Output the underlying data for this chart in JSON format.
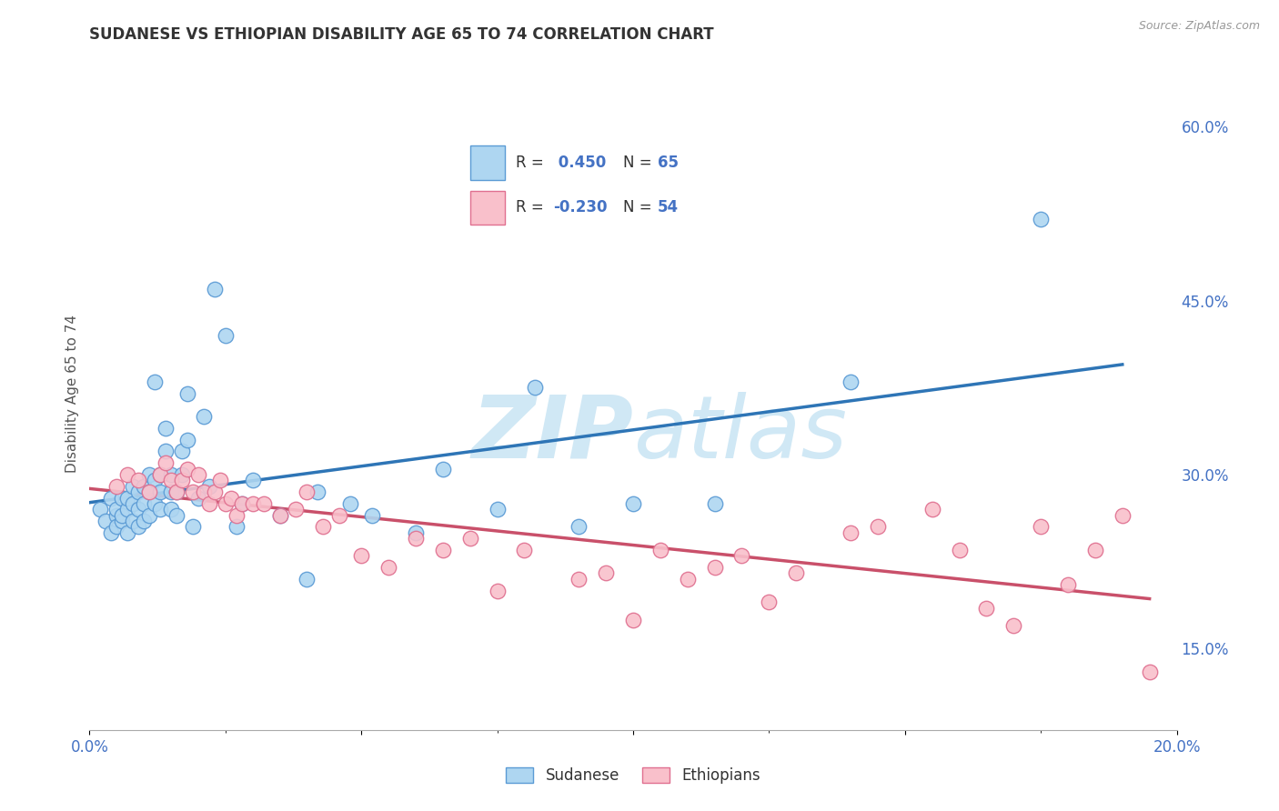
{
  "title": "SUDANESE VS ETHIOPIAN DISABILITY AGE 65 TO 74 CORRELATION CHART",
  "source": "Source: ZipAtlas.com",
  "ylabel": "Disability Age 65 to 74",
  "xlim": [
    0.0,
    0.2
  ],
  "ylim": [
    0.08,
    0.66
  ],
  "xticks": [
    0.0,
    0.05,
    0.1,
    0.15,
    0.2
  ],
  "xtick_labels": [
    "0.0%",
    "",
    "",
    "",
    "20.0%"
  ],
  "yticks_right": [
    0.15,
    0.3,
    0.45,
    0.6
  ],
  "ytick_labels_right": [
    "15.0%",
    "30.0%",
    "45.0%",
    "60.0%"
  ],
  "blue_fill_color": "#AED6F1",
  "blue_edge_color": "#5B9BD5",
  "pink_fill_color": "#F9C0CB",
  "pink_edge_color": "#E07090",
  "blue_line_color": "#2E75B6",
  "pink_line_color": "#C9506A",
  "r_blue": 0.45,
  "n_blue": 65,
  "r_pink": -0.23,
  "n_pink": 54,
  "legend_label_blue": "Sudanese",
  "legend_label_pink": "Ethiopians",
  "background_color": "#FFFFFF",
  "grid_color": "#CCCCCC",
  "watermark_color": "#D0E8F5",
  "blue_scatter_x": [
    0.002,
    0.003,
    0.004,
    0.004,
    0.005,
    0.005,
    0.005,
    0.006,
    0.006,
    0.006,
    0.007,
    0.007,
    0.007,
    0.008,
    0.008,
    0.008,
    0.009,
    0.009,
    0.009,
    0.01,
    0.01,
    0.01,
    0.011,
    0.011,
    0.011,
    0.012,
    0.012,
    0.012,
    0.013,
    0.013,
    0.013,
    0.014,
    0.014,
    0.015,
    0.015,
    0.015,
    0.016,
    0.016,
    0.017,
    0.017,
    0.018,
    0.018,
    0.019,
    0.02,
    0.021,
    0.022,
    0.023,
    0.025,
    0.027,
    0.028,
    0.03,
    0.035,
    0.04,
    0.042,
    0.048,
    0.052,
    0.06,
    0.065,
    0.075,
    0.082,
    0.09,
    0.1,
    0.115,
    0.14,
    0.175
  ],
  "blue_scatter_y": [
    0.27,
    0.26,
    0.28,
    0.25,
    0.265,
    0.27,
    0.255,
    0.26,
    0.28,
    0.265,
    0.25,
    0.27,
    0.28,
    0.26,
    0.275,
    0.29,
    0.255,
    0.27,
    0.285,
    0.26,
    0.275,
    0.29,
    0.265,
    0.285,
    0.3,
    0.38,
    0.275,
    0.295,
    0.27,
    0.285,
    0.3,
    0.32,
    0.34,
    0.27,
    0.285,
    0.3,
    0.265,
    0.285,
    0.3,
    0.32,
    0.33,
    0.37,
    0.255,
    0.28,
    0.35,
    0.29,
    0.46,
    0.42,
    0.255,
    0.275,
    0.295,
    0.265,
    0.21,
    0.285,
    0.275,
    0.265,
    0.25,
    0.305,
    0.27,
    0.375,
    0.255,
    0.275,
    0.275,
    0.38,
    0.52
  ],
  "pink_scatter_x": [
    0.005,
    0.007,
    0.009,
    0.011,
    0.013,
    0.014,
    0.015,
    0.016,
    0.017,
    0.018,
    0.019,
    0.02,
    0.021,
    0.022,
    0.023,
    0.024,
    0.025,
    0.026,
    0.027,
    0.028,
    0.03,
    0.032,
    0.035,
    0.038,
    0.04,
    0.043,
    0.046,
    0.05,
    0.055,
    0.06,
    0.065,
    0.07,
    0.075,
    0.08,
    0.09,
    0.095,
    0.1,
    0.105,
    0.11,
    0.115,
    0.12,
    0.125,
    0.13,
    0.14,
    0.145,
    0.155,
    0.16,
    0.165,
    0.17,
    0.175,
    0.18,
    0.185,
    0.19,
    0.195
  ],
  "pink_scatter_y": [
    0.29,
    0.3,
    0.295,
    0.285,
    0.3,
    0.31,
    0.295,
    0.285,
    0.295,
    0.305,
    0.285,
    0.3,
    0.285,
    0.275,
    0.285,
    0.295,
    0.275,
    0.28,
    0.265,
    0.275,
    0.275,
    0.275,
    0.265,
    0.27,
    0.285,
    0.255,
    0.265,
    0.23,
    0.22,
    0.245,
    0.235,
    0.245,
    0.2,
    0.235,
    0.21,
    0.215,
    0.175,
    0.235,
    0.21,
    0.22,
    0.23,
    0.19,
    0.215,
    0.25,
    0.255,
    0.27,
    0.235,
    0.185,
    0.17,
    0.255,
    0.205,
    0.235,
    0.265,
    0.13
  ]
}
